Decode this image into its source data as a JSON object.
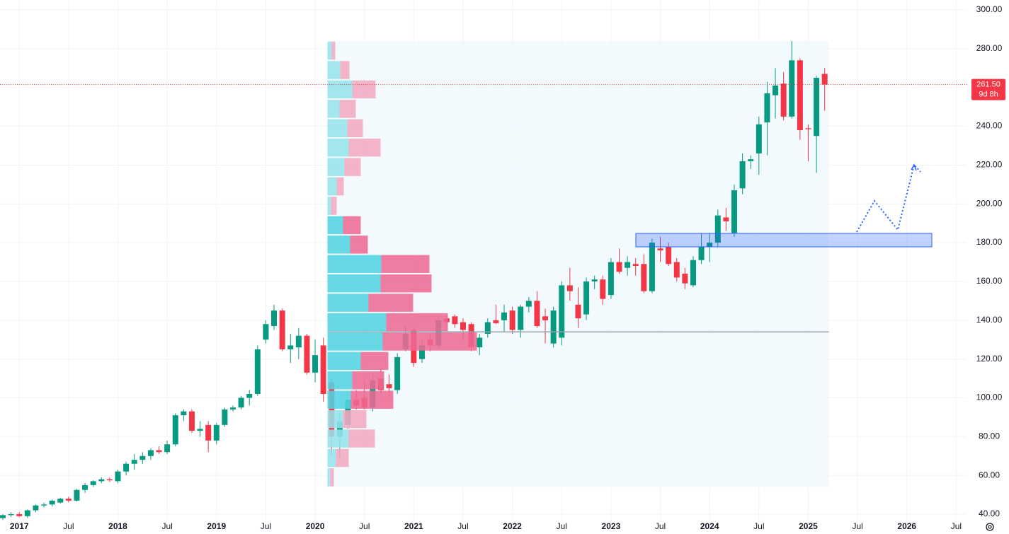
{
  "chart_data": {
    "type": "candlestick",
    "x": [
      "2016-11",
      "2016-12",
      "2017-01",
      "2017-02",
      "2017-03",
      "2017-04",
      "2017-05",
      "2017-06",
      "2017-07",
      "2017-08",
      "2017-09",
      "2017-10",
      "2017-11",
      "2017-12",
      "2018-01",
      "2018-02",
      "2018-03",
      "2018-04",
      "2018-05",
      "2018-06",
      "2018-07",
      "2018-08",
      "2018-09",
      "2018-10",
      "2018-11",
      "2018-12",
      "2019-01",
      "2019-02",
      "2019-03",
      "2019-04",
      "2019-05",
      "2019-06",
      "2019-07",
      "2019-08",
      "2019-09",
      "2019-10",
      "2019-11",
      "2019-12",
      "2020-01",
      "2020-02",
      "2020-03",
      "2020-04",
      "2020-05",
      "2020-06",
      "2020-07",
      "2020-08",
      "2020-09",
      "2020-10",
      "2020-11",
      "2020-12",
      "2021-01",
      "2021-02",
      "2021-03",
      "2021-04",
      "2021-05",
      "2021-06",
      "2021-07",
      "2021-08",
      "2021-09",
      "2021-10",
      "2021-11",
      "2021-12",
      "2022-01",
      "2022-02",
      "2022-03",
      "2022-04",
      "2022-05",
      "2022-06",
      "2022-07",
      "2022-08",
      "2022-09",
      "2022-10",
      "2022-11",
      "2022-12",
      "2023-01",
      "2023-02",
      "2023-03",
      "2023-04",
      "2023-05",
      "2023-06",
      "2023-07",
      "2023-08",
      "2023-09",
      "2023-10",
      "2023-11",
      "2023-12",
      "2024-01",
      "2024-02",
      "2024-03",
      "2024-04",
      "2024-05",
      "2024-06",
      "2024-07",
      "2024-08",
      "2024-09",
      "2024-10",
      "2024-11",
      "2024-12",
      "2025-01",
      "2025-02",
      "2025-03"
    ],
    "open": [
      38,
      39.5,
      40,
      39,
      42,
      44.5,
      45,
      46,
      48,
      47,
      52.5,
      55,
      57,
      58,
      57,
      62,
      66,
      68,
      70,
      73,
      72,
      76,
      91,
      93,
      83,
      86,
      78,
      86,
      94,
      95,
      100,
      102,
      130,
      137,
      145,
      125,
      126,
      132,
      113,
      127,
      108,
      80,
      86,
      99,
      100,
      95,
      110,
      107,
      104,
      125,
      135,
      120,
      130,
      127,
      141,
      142,
      139,
      138,
      126,
      133,
      140,
      140,
      145,
      135,
      147,
      150,
      142,
      128,
      131,
      158,
      148,
      143,
      160,
      161,
      153,
      170,
      167,
      169,
      169,
      155,
      177,
      178,
      170,
      164,
      158,
      171,
      178,
      180,
      193,
      185,
      208,
      222,
      226,
      242,
      256,
      262,
      245,
      274,
      239,
      235,
      267
    ],
    "high": [
      40,
      41,
      41,
      42.5,
      45,
      46,
      47.5,
      48.5,
      49,
      53,
      56,
      57.5,
      59,
      59,
      63,
      67,
      71,
      72,
      74,
      75,
      78,
      92,
      94,
      94,
      88,
      88,
      87,
      95,
      96,
      101,
      104,
      127,
      140,
      148,
      146,
      133,
      136,
      133,
      130,
      131,
      110,
      92,
      99,
      104,
      108,
      112,
      115,
      112,
      123,
      137,
      136,
      130,
      133,
      141,
      143,
      143,
      141,
      139,
      133,
      141,
      148,
      148,
      147,
      148,
      152,
      155,
      146,
      147,
      160,
      167,
      157,
      162,
      163,
      163,
      172,
      177,
      173,
      172,
      174,
      182,
      183,
      180,
      172,
      167,
      173,
      185,
      185,
      197,
      198,
      210,
      226,
      225,
      245,
      263,
      270,
      268,
      284,
      275,
      241,
      266,
      270
    ],
    "low": [
      37,
      38.5,
      38.5,
      38,
      41,
      43.5,
      44,
      45.5,
      46,
      46.5,
      51,
      54,
      56,
      56.5,
      56,
      60,
      63,
      66,
      68,
      71,
      71,
      75,
      88,
      82,
      80,
      72,
      76,
      85,
      93,
      94,
      96,
      101,
      128,
      135,
      124,
      118,
      120,
      112,
      108,
      98,
      70,
      68,
      84,
      94,
      94,
      93,
      102,
      101,
      102,
      124,
      116,
      118,
      124,
      126,
      135,
      136,
      130,
      124,
      122,
      131,
      138,
      134,
      133,
      131,
      144,
      136,
      128,
      126,
      127,
      150,
      136,
      140,
      156,
      148,
      151,
      164,
      163,
      163,
      154,
      154,
      170,
      168,
      160,
      156,
      157,
      169,
      170,
      178,
      186,
      183,
      205,
      218,
      215,
      225,
      244,
      243,
      244,
      233,
      222,
      216,
      248
    ],
    "close": [
      39.5,
      40,
      39,
      42,
      44.5,
      45,
      47,
      48,
      47,
      52.5,
      55,
      57,
      58,
      57.5,
      62,
      66,
      68,
      70,
      73,
      72,
      76,
      91,
      93,
      83,
      84,
      78,
      86,
      94,
      95,
      100,
      102,
      125,
      138,
      145,
      125,
      127,
      132,
      113,
      122,
      102,
      80,
      88,
      99,
      96,
      95,
      109,
      104,
      105,
      121,
      133,
      118,
      127,
      127,
      140,
      139,
      138,
      135,
      126,
      131,
      139,
      138.5,
      144,
      135,
      147,
      150,
      137,
      140,
      145,
      158,
      155,
      141,
      160,
      161,
      151,
      170,
      165,
      170,
      168,
      155,
      180,
      176,
      169,
      162,
      159,
      171,
      178,
      180,
      194,
      191,
      207,
      222,
      223,
      241,
      257,
      261,
      245,
      274,
      238,
      238.5,
      265,
      261.5
    ],
    "up_color": "#089981",
    "down_color": "#f23645",
    "xlim": [
      "2016-11",
      "2026-08"
    ],
    "xticks": [
      {
        "value": "2017-01",
        "label": "2017"
      },
      {
        "value": "2017-07",
        "label": "Jul"
      },
      {
        "value": "2018-01",
        "label": "2018"
      },
      {
        "value": "2018-07",
        "label": "Jul"
      },
      {
        "value": "2019-01",
        "label": "2019"
      },
      {
        "value": "2019-07",
        "label": "Jul"
      },
      {
        "value": "2020-01",
        "label": "2020"
      },
      {
        "value": "2020-07",
        "label": "Jul"
      },
      {
        "value": "2021-01",
        "label": "2021"
      },
      {
        "value": "2021-07",
        "label": "Jul"
      },
      {
        "value": "2022-01",
        "label": "2022"
      },
      {
        "value": "2022-07",
        "label": "Jul"
      },
      {
        "value": "2023-01",
        "label": "2023"
      },
      {
        "value": "2023-07",
        "label": "Jul"
      },
      {
        "value": "2024-01",
        "label": "2024"
      },
      {
        "value": "2024-07",
        "label": "Jul"
      },
      {
        "value": "2025-01",
        "label": "2025"
      },
      {
        "value": "2025-07",
        "label": "Jul"
      },
      {
        "value": "2026-01",
        "label": "2026"
      },
      {
        "value": "2026-07",
        "label": "Jul"
      }
    ],
    "ylim": [
      40,
      300
    ],
    "yticks": [
      {
        "value": 40,
        "label": "40.00"
      },
      {
        "value": 60,
        "label": "60.00"
      },
      {
        "value": 80,
        "label": "80.00"
      },
      {
        "value": 100,
        "label": "100.00"
      },
      {
        "value": 120,
        "label": "120.00"
      },
      {
        "value": 140,
        "label": "140.00"
      },
      {
        "value": 160,
        "label": "160.00"
      },
      {
        "value": 180,
        "label": "180.00"
      },
      {
        "value": 200,
        "label": "200.00"
      },
      {
        "value": 220,
        "label": "220.00"
      },
      {
        "value": 240,
        "label": "240.00"
      },
      {
        "value": 260,
        "label": "260.00"
      },
      {
        "value": 280,
        "label": "280.00"
      },
      {
        "value": 300,
        "label": "300.00"
      }
    ],
    "grid": true,
    "last_price": {
      "value": 261.5,
      "label": "261.50"
    },
    "countdown": "9d 8h",
    "volume_profile": {
      "range": [
        "2020-03",
        "2025-03"
      ],
      "bins": [
        54,
        64,
        74,
        84,
        94,
        104,
        114,
        124,
        134,
        144,
        154,
        164,
        174,
        184,
        194,
        204,
        214,
        224,
        234,
        244,
        254,
        264,
        274,
        284
      ],
      "up": [
        4,
        12,
        30,
        22,
        33,
        35,
        47,
        78,
        83,
        58,
        75,
        76,
        32,
        22,
        5,
        13,
        24,
        30,
        28,
        17,
        35,
        18,
        6
      ],
      "down": [
        5,
        18,
        37,
        33,
        60,
        45,
        39,
        133,
        87,
        63,
        72,
        68,
        25,
        25,
        8,
        10,
        23,
        45,
        22,
        23,
        33,
        13,
        5
      ],
      "value_area": [
        94,
        194
      ],
      "poc": 134,
      "up_color": "#52d3e3",
      "down_color": "#ee6a94",
      "up_color_outside": "#96e2ec",
      "down_color_outside": "#f2a8c2"
    }
  }
}
